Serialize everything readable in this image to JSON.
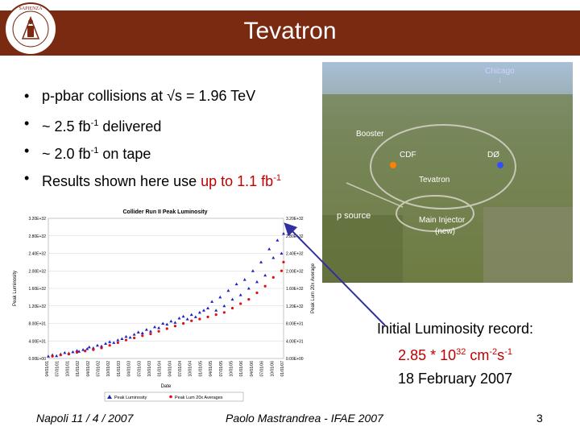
{
  "slide": {
    "title": "Tevatron",
    "seal_text": "SAPIENZA UNIVERSITÀ DI ROMA",
    "bullets": [
      {
        "pre": "p-pbar collisions at √s = 1.96 TeV"
      },
      {
        "pre": "~ 2.5 fb",
        "sup": "-1",
        "post": " delivered"
      },
      {
        "pre": "~ 2.0 fb",
        "sup": "-1",
        "post": " on tape"
      },
      {
        "pre": "Results shown here use ",
        "hl": "up to 1.1 fb",
        "hlsup": "-1"
      }
    ],
    "photo_labels": {
      "chicago": "Chicago",
      "booster": "Booster",
      "cdf": "CDF",
      "d0": "DØ",
      "tevatron": "Tevatron",
      "p_source": "p source",
      "main_injector": "Main Injector",
      "main_injector_new": "(new)"
    },
    "record": {
      "line1": "Initial Luminosity record:",
      "line2_a": "2.85 * 10",
      "line2_sup1": "32",
      "line2_b": " cm",
      "line2_sup2": "-2",
      "line2_c": "s",
      "line2_sup3": "-1",
      "line3": "18 February 2007"
    },
    "footer": {
      "left": "Napoli 11 / 4 / 2007",
      "center": "Paolo Mastrandrea - IFAE 2007",
      "page": "3"
    }
  },
  "chart_data": {
    "type": "scatter",
    "title": "Collider Run II Peak Luminosity",
    "xlabel": "Date",
    "ylabel": "Peak Luminosity",
    "ylabel_right": "Peak Lum 20x Average",
    "y_ticks_left": [
      "3.20E+32",
      "2.80E+32",
      "2.40E+32",
      "2.00E+32",
      "1.60E+32",
      "1.20E+32",
      "8.00E+31",
      "4.00E+31",
      "0.00E+00"
    ],
    "y_ticks_right": [
      "3.20E+32",
      "2.80E+32",
      "2.40E+32",
      "2.00E+32",
      "1.60E+32",
      "1.20E+32",
      "8.00E+31",
      "4.00E+31",
      "0.00E+00"
    ],
    "x_ticks": [
      "04/01/01",
      "07/01/01",
      "10/01/01",
      "01/01/02",
      "04/01/02",
      "07/01/02",
      "10/01/02",
      "01/01/03",
      "04/01/03",
      "07/01/03",
      "10/01/03",
      "01/01/04",
      "04/01/04",
      "07/01/04",
      "10/01/04",
      "01/01/05",
      "04/01/05",
      "07/01/05",
      "10/01/05",
      "01/01/06",
      "04/01/06",
      "07/01/06",
      "10/01/06",
      "01/01/07"
    ],
    "ylim": [
      0,
      3.2e+32
    ],
    "legend": [
      "Peak Luminosity",
      "Peak Lum 20x Averages"
    ],
    "legend_placement": "bottom",
    "series_colors": {
      "peak": "#2020c0",
      "avg": "#e01010"
    },
    "series_peak": [
      [
        0,
        0.05
      ],
      [
        0.4,
        0.08
      ],
      [
        0.8,
        0.06
      ],
      [
        1.2,
        0.1
      ],
      [
        1.6,
        0.13
      ],
      [
        2,
        0.12
      ],
      [
        2.4,
        0.15
      ],
      [
        2.8,
        0.18
      ],
      [
        3,
        0.16
      ],
      [
        3.4,
        0.2
      ],
      [
        3.8,
        0.22
      ],
      [
        4,
        0.26
      ],
      [
        4.4,
        0.24
      ],
      [
        4.8,
        0.3
      ],
      [
        5.2,
        0.28
      ],
      [
        5.6,
        0.34
      ],
      [
        6,
        0.38
      ],
      [
        6.4,
        0.36
      ],
      [
        6.8,
        0.42
      ],
      [
        7.2,
        0.45
      ],
      [
        7.6,
        0.5
      ],
      [
        8,
        0.48
      ],
      [
        8.4,
        0.55
      ],
      [
        8.8,
        0.6
      ],
      [
        9.2,
        0.58
      ],
      [
        9.6,
        0.66
      ],
      [
        10,
        0.62
      ],
      [
        10.4,
        0.72
      ],
      [
        10.8,
        0.7
      ],
      [
        11.2,
        0.8
      ],
      [
        11.6,
        0.78
      ],
      [
        12,
        0.85
      ],
      [
        12.4,
        0.82
      ],
      [
        12.8,
        0.92
      ],
      [
        13.2,
        0.96
      ],
      [
        13.6,
        0.9
      ],
      [
        14,
        1.0
      ],
      [
        14.4,
        0.95
      ],
      [
        14.8,
        1.05
      ],
      [
        15.2,
        1.1
      ],
      [
        15.6,
        1.15
      ],
      [
        16,
        1.3
      ],
      [
        16.4,
        1.1
      ],
      [
        16.8,
        1.4
      ],
      [
        17.2,
        1.2
      ],
      [
        17.6,
        1.55
      ],
      [
        18,
        1.35
      ],
      [
        18.4,
        1.7
      ],
      [
        18.8,
        1.45
      ],
      [
        19.2,
        1.8
      ],
      [
        19.6,
        1.6
      ],
      [
        20,
        2.0
      ],
      [
        20.4,
        1.75
      ],
      [
        20.8,
        2.2
      ],
      [
        21.2,
        1.9
      ],
      [
        21.6,
        2.5
      ],
      [
        22,
        2.3
      ],
      [
        22.4,
        2.7
      ],
      [
        22.8,
        2.4
      ],
      [
        23,
        2.85
      ]
    ],
    "series_avg": [
      [
        0.4,
        0.05
      ],
      [
        1.2,
        0.08
      ],
      [
        2,
        0.1
      ],
      [
        2.8,
        0.14
      ],
      [
        3.6,
        0.17
      ],
      [
        4.4,
        0.2
      ],
      [
        5.2,
        0.24
      ],
      [
        6,
        0.3
      ],
      [
        6.8,
        0.36
      ],
      [
        7.6,
        0.42
      ],
      [
        8.4,
        0.47
      ],
      [
        9.2,
        0.52
      ],
      [
        10,
        0.56
      ],
      [
        10.8,
        0.62
      ],
      [
        11.6,
        0.68
      ],
      [
        12.4,
        0.74
      ],
      [
        13.2,
        0.8
      ],
      [
        14,
        0.86
      ],
      [
        14.8,
        0.9
      ],
      [
        15.6,
        0.95
      ],
      [
        16.4,
        1.0
      ],
      [
        17.2,
        1.05
      ],
      [
        18,
        1.15
      ],
      [
        18.8,
        1.25
      ],
      [
        19.6,
        1.35
      ],
      [
        20.4,
        1.5
      ],
      [
        21.2,
        1.65
      ],
      [
        22,
        1.85
      ],
      [
        22.8,
        2.0
      ],
      [
        23,
        2.2
      ]
    ]
  }
}
